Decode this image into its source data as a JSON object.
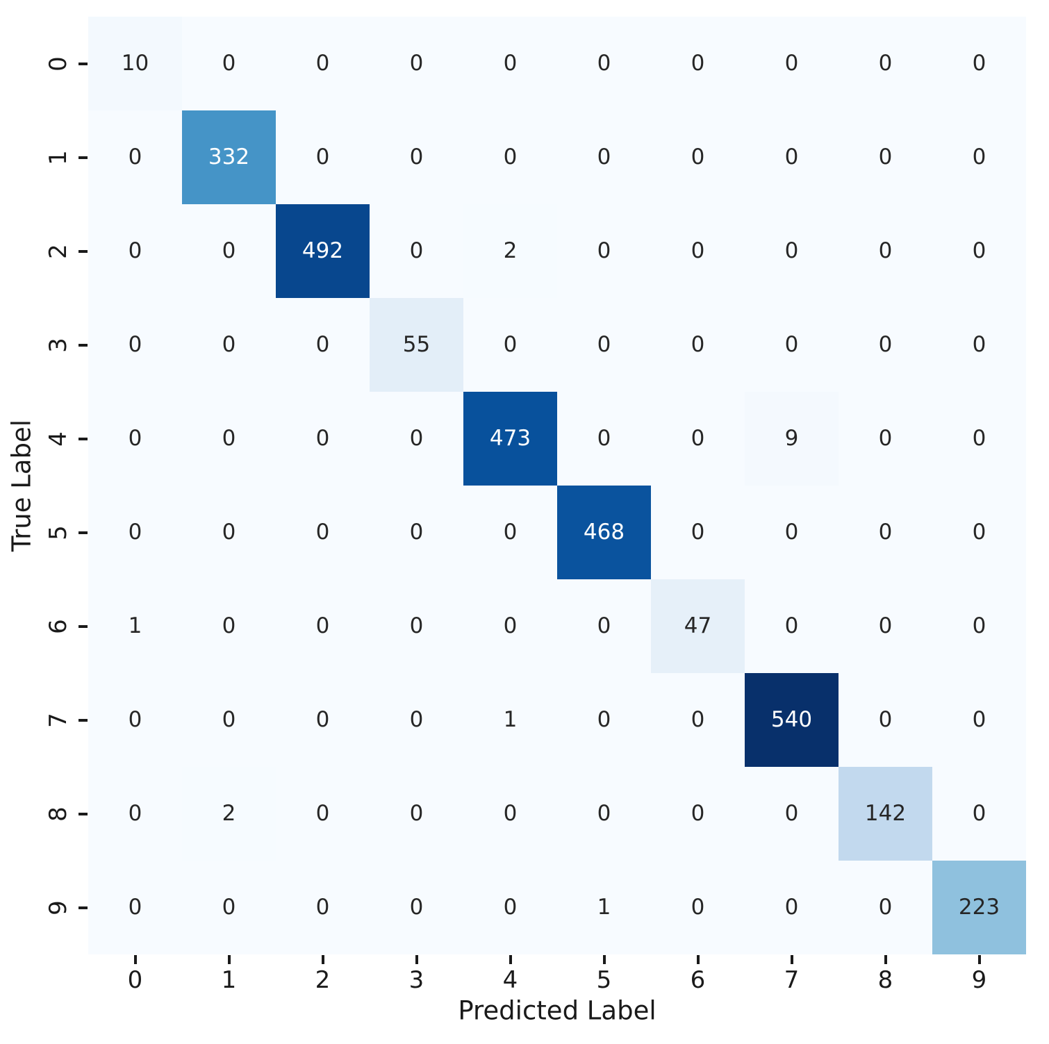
{
  "chart_data": {
    "type": "heatmap",
    "title": "",
    "xlabel": "Predicted Label",
    "ylabel": "True Label",
    "x_ticklabels": [
      "0",
      "1",
      "2",
      "3",
      "4",
      "5",
      "6",
      "7",
      "8",
      "9"
    ],
    "y_ticklabels": [
      "0",
      "1",
      "2",
      "3",
      "4",
      "5",
      "6",
      "7",
      "8",
      "9"
    ],
    "matrix": [
      [
        10,
        0,
        0,
        0,
        0,
        0,
        0,
        0,
        0,
        0
      ],
      [
        0,
        332,
        0,
        0,
        0,
        0,
        0,
        0,
        0,
        0
      ],
      [
        0,
        0,
        492,
        0,
        2,
        0,
        0,
        0,
        0,
        0
      ],
      [
        0,
        0,
        0,
        55,
        0,
        0,
        0,
        0,
        0,
        0
      ],
      [
        0,
        0,
        0,
        0,
        473,
        0,
        0,
        9,
        0,
        0
      ],
      [
        0,
        0,
        0,
        0,
        0,
        468,
        0,
        0,
        0,
        0
      ],
      [
        1,
        0,
        0,
        0,
        0,
        0,
        47,
        0,
        0,
        0
      ],
      [
        0,
        0,
        0,
        0,
        1,
        0,
        0,
        540,
        0,
        0
      ],
      [
        0,
        2,
        0,
        0,
        0,
        0,
        0,
        0,
        142,
        0
      ],
      [
        0,
        0,
        0,
        0,
        0,
        1,
        0,
        0,
        0,
        223
      ]
    ],
    "colormap": {
      "name": "Blues",
      "vmin": 0,
      "vmax": 540,
      "stops": [
        "#f7fbff",
        "#deebf7",
        "#c6dbef",
        "#9ecae1",
        "#6baed6",
        "#4292c6",
        "#2171b5",
        "#08519c",
        "#08306b"
      ]
    },
    "annotation_text_threshold": 270,
    "colors": {
      "cell_text_dark": "#262626",
      "cell_text_light": "#ffffff",
      "tick_color": "#1a1a1a",
      "figure_background": "#ffffff"
    },
    "legend": "none",
    "grid": false
  }
}
